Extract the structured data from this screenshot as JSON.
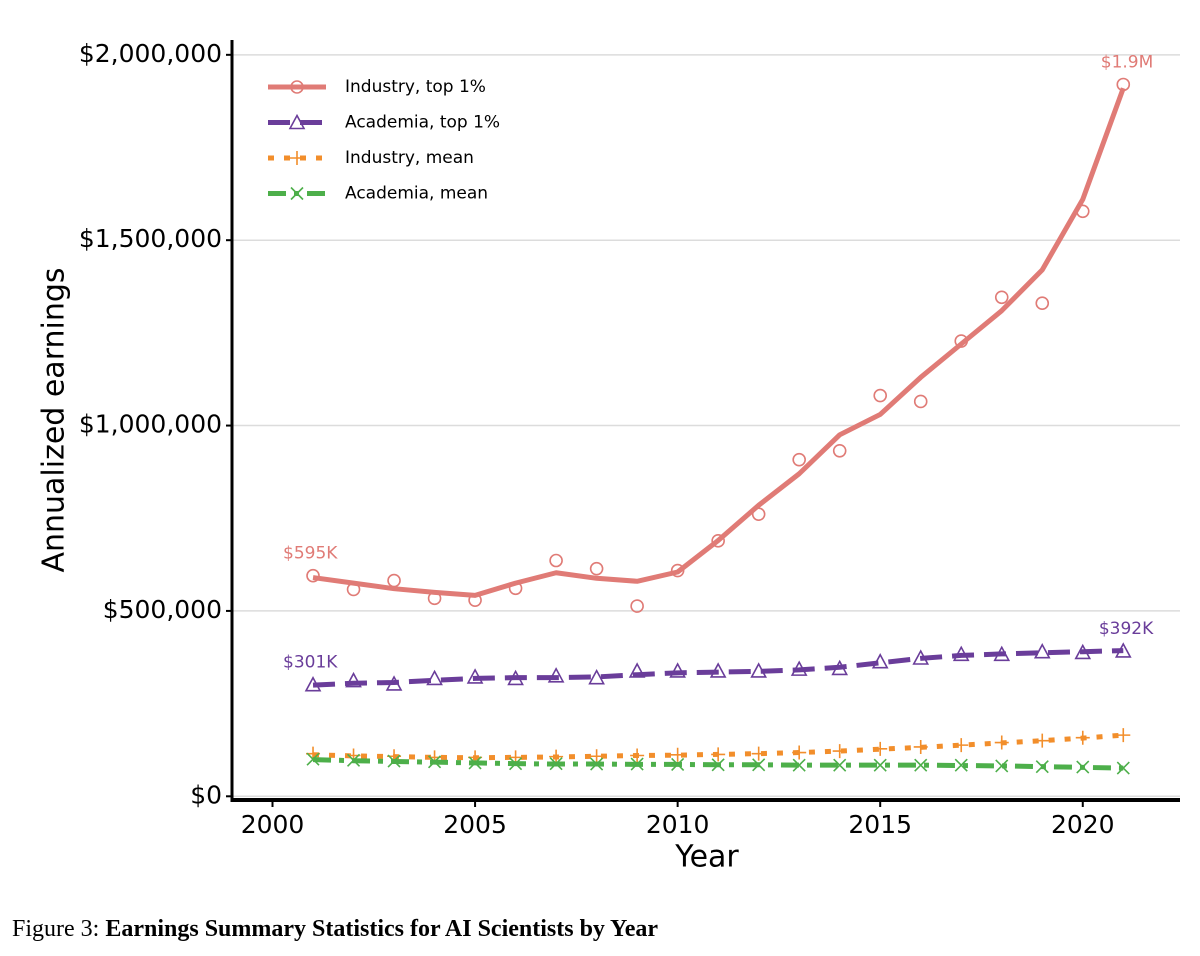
{
  "chart_data": {
    "type": "line",
    "x_label": "Year",
    "y_label": "Annualized earnings",
    "caption": {
      "prefix": "Figure 3:",
      "title": "Earnings Summary Statistics for AI Scientists by Year"
    },
    "x": [
      2001,
      2002,
      2003,
      2004,
      2005,
      2006,
      2007,
      2008,
      2009,
      2010,
      2011,
      2012,
      2013,
      2014,
      2015,
      2016,
      2017,
      2018,
      2019,
      2020,
      2021
    ],
    "xlim": [
      1999,
      2022.4
    ],
    "xticks": [
      2000,
      2005,
      2010,
      2015,
      2020
    ],
    "ylim": [
      -10000,
      2040000
    ],
    "yticks": [
      {
        "value": 0,
        "label": "$0"
      },
      {
        "value": 500000,
        "label": "$500,000"
      },
      {
        "value": 1000000,
        "label": "$1,000,000"
      },
      {
        "value": 1500000,
        "label": "$1,500,000"
      },
      {
        "value": 2000000,
        "label": "$2,000,000"
      }
    ],
    "grid": true,
    "legend": "upper left",
    "series": [
      {
        "name": "Industry, top 1%",
        "color": "#e07b76",
        "marker": "circle",
        "linestyle": "solid",
        "values": [
          595000,
          558000,
          582000,
          534000,
          529000,
          561000,
          636000,
          614000,
          513000,
          609000,
          689000,
          761000,
          908000,
          932000,
          1081000,
          1065000,
          1228000,
          1346000,
          1330000,
          1578000,
          1920000
        ],
        "trend": [
          590000,
          575000,
          560000,
          550000,
          542000,
          575000,
          603000,
          588000,
          580000,
          605000,
          690000,
          785000,
          870000,
          975000,
          1030000,
          1130000,
          1220000,
          1310000,
          1420000,
          1610000,
          1910000
        ],
        "value_labels": [
          "$595K",
          null,
          null,
          null,
          null,
          null,
          null,
          null,
          null,
          null,
          null,
          null,
          null,
          null,
          null,
          null,
          null,
          null,
          null,
          null,
          "$1.9M"
        ]
      },
      {
        "name": "Academia, top 1%",
        "color": "#6a3d9a",
        "marker": "triangle",
        "linestyle": "dashed",
        "values": [
          301000,
          312000,
          303000,
          318000,
          322000,
          318000,
          325000,
          320000,
          338000,
          338000,
          338000,
          338000,
          343000,
          345000,
          363000,
          373000,
          383000,
          383000,
          390000,
          388000,
          392000
        ],
        "trend": [
          300000,
          305000,
          307000,
          313000,
          318000,
          320000,
          320000,
          322000,
          328000,
          333000,
          335000,
          337000,
          341000,
          348000,
          360000,
          372000,
          380000,
          384000,
          387000,
          390000,
          393000
        ],
        "value_labels": [
          "$301K",
          null,
          null,
          null,
          null,
          null,
          null,
          null,
          null,
          null,
          null,
          null,
          null,
          null,
          null,
          null,
          null,
          null,
          null,
          null,
          "$392K"
        ]
      },
      {
        "name": "Industry, mean",
        "color": "#f28e2b",
        "marker": "plus",
        "linestyle": "dotted",
        "values": [
          115000,
          110000,
          108000,
          105000,
          105000,
          105000,
          107000,
          108000,
          110000,
          112000,
          113000,
          115000,
          118000,
          122000,
          128000,
          133000,
          138000,
          145000,
          150000,
          158000,
          165000
        ],
        "trend": [
          112000,
          109000,
          107000,
          105000,
          104000,
          105000,
          106000,
          108000,
          110000,
          111000,
          113000,
          115000,
          118000,
          122000,
          127000,
          132000,
          138000,
          144000,
          150000,
          157000,
          165000
        ]
      },
      {
        "name": "Academia, mean",
        "color": "#4daf4a",
        "marker": "x",
        "linestyle": "dashdot",
        "values": [
          100000,
          97000,
          95000,
          93000,
          90000,
          88000,
          88000,
          87000,
          87000,
          86000,
          85000,
          85000,
          84000,
          84000,
          84000,
          84000,
          84000,
          82000,
          80000,
          79000,
          76000
        ],
        "trend": [
          99000,
          96000,
          94000,
          92000,
          90000,
          88000,
          87000,
          87000,
          86000,
          86000,
          85000,
          85000,
          84000,
          84000,
          84000,
          84000,
          83000,
          82000,
          80000,
          78000,
          76000
        ]
      }
    ]
  }
}
